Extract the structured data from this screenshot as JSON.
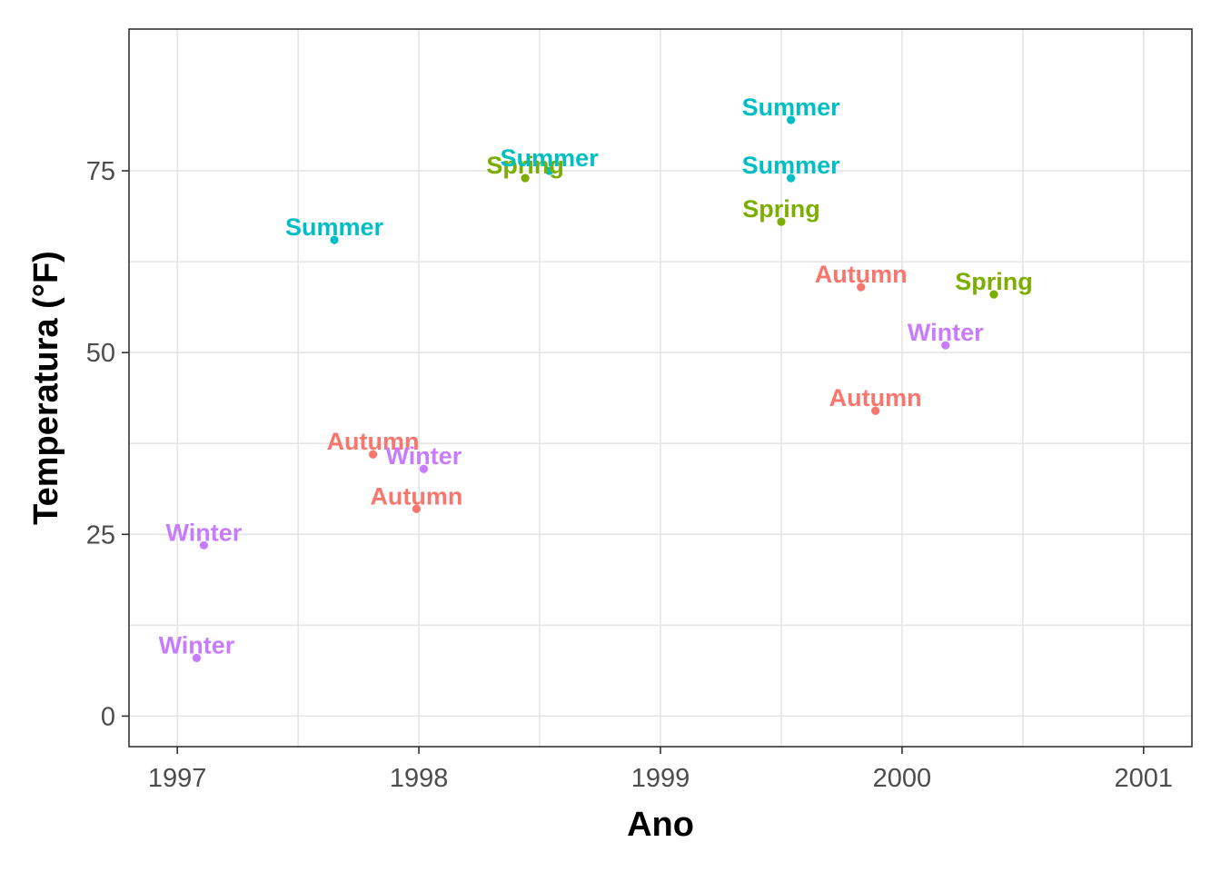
{
  "chart_data": {
    "type": "scatter",
    "title": "",
    "xlabel": "Ano",
    "ylabel": "Temperatura (°F)",
    "xlim": [
      1996.8,
      2001.2
    ],
    "ylim": [
      -4.2,
      94.5
    ],
    "x_ticks": [
      1997,
      1998,
      1999,
      2000,
      2001
    ],
    "y_ticks": [
      0,
      25,
      50,
      75
    ],
    "grid": true,
    "legend": "none",
    "colors": {
      "Autumn": "#f8766d",
      "Spring": "#7cae00",
      "Summer": "#00bfc4",
      "Winter": "#c77cff"
    },
    "points": [
      {
        "x": 1997.08,
        "y": 8.0,
        "label": "Winter"
      },
      {
        "x": 1997.11,
        "y": 23.5,
        "label": "Winter"
      },
      {
        "x": 1997.65,
        "y": 65.5,
        "label": "Summer"
      },
      {
        "x": 1997.81,
        "y": 36.0,
        "label": "Autumn"
      },
      {
        "x": 1997.99,
        "y": 28.5,
        "label": "Autumn"
      },
      {
        "x": 1998.02,
        "y": 34.0,
        "label": "Winter"
      },
      {
        "x": 1998.44,
        "y": 74.0,
        "label": "Spring"
      },
      {
        "x": 1998.54,
        "y": 75.0,
        "label": "Summer"
      },
      {
        "x": 1999.5,
        "y": 68.0,
        "label": "Spring"
      },
      {
        "x": 1999.54,
        "y": 82.0,
        "label": "Summer"
      },
      {
        "x": 1999.54,
        "y": 74.0,
        "label": "Summer"
      },
      {
        "x": 1999.83,
        "y": 59.0,
        "label": "Autumn"
      },
      {
        "x": 1999.89,
        "y": 42.0,
        "label": "Autumn"
      },
      {
        "x": 2000.18,
        "y": 51.0,
        "label": "Winter"
      },
      {
        "x": 2000.38,
        "y": 58.0,
        "label": "Spring"
      }
    ]
  }
}
